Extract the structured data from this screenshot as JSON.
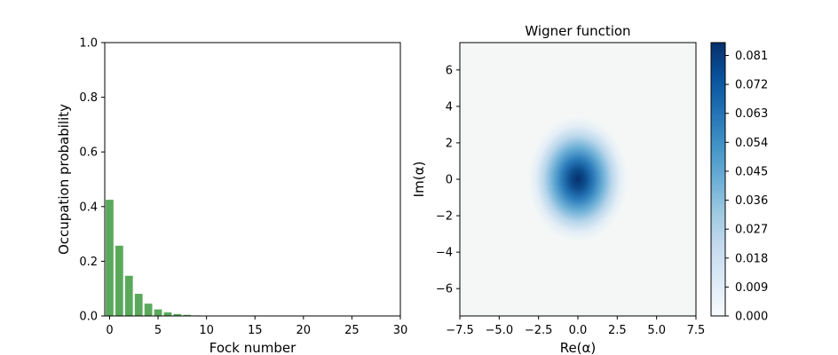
{
  "chart_data": [
    {
      "type": "bar",
      "xlabel": "Fock number",
      "ylabel": "Occupation probability",
      "xlim": [
        -0.5,
        30
      ],
      "ylim": [
        0,
        1.0
      ],
      "xticks": [
        "0",
        "5",
        "10",
        "15",
        "20",
        "25",
        "30"
      ],
      "yticks": [
        "0.0",
        "0.2",
        "0.4",
        "0.6",
        "0.8",
        "1.0"
      ],
      "x": [
        0,
        1,
        2,
        3,
        4,
        5,
        6,
        7,
        8,
        9,
        10,
        11,
        12,
        13,
        14,
        15,
        16,
        17,
        18,
        19,
        20,
        21,
        22,
        23,
        24,
        25,
        26,
        27,
        28,
        29
      ],
      "values": [
        0.425,
        0.257,
        0.147,
        0.081,
        0.045,
        0.024,
        0.013,
        0.007,
        0.004,
        0.002,
        0.001,
        0.0006,
        0.0003,
        0.0002,
        0.0001,
        0,
        0,
        0,
        0,
        0,
        0,
        0,
        0,
        0,
        0,
        0,
        0,
        0,
        0,
        0
      ],
      "bar_color": "#5aa95b",
      "grid": false
    },
    {
      "type": "heatmap",
      "title": "Wigner function",
      "xlabel": "Re(α)",
      "ylabel": "Im(α)",
      "xlim": [
        -7.5,
        7.5
      ],
      "ylim": [
        -7.5,
        7.5
      ],
      "xticks": [
        "−7.5",
        "−5.0",
        "−2.5",
        "0.0",
        "2.5",
        "5.0",
        "7.5"
      ],
      "yticks": [
        "−6",
        "−4",
        "−2",
        "0",
        "2",
        "4",
        "6"
      ],
      "peak": {
        "x": 0,
        "y": 0,
        "value": 0.085,
        "sigma_x": 1.05,
        "sigma_y": 1.15
      },
      "colormap": "Blues",
      "colorbar": {
        "range": [
          0,
          0.085
        ],
        "ticks": [
          "0.000",
          "0.009",
          "0.018",
          "0.027",
          "0.036",
          "0.045",
          "0.054",
          "0.063",
          "0.072",
          "0.081"
        ]
      },
      "colors": {
        "low": "#f7fbff",
        "mid": "#6aaed6",
        "high": "#08306b",
        "background": "#f4f7f6"
      }
    }
  ]
}
